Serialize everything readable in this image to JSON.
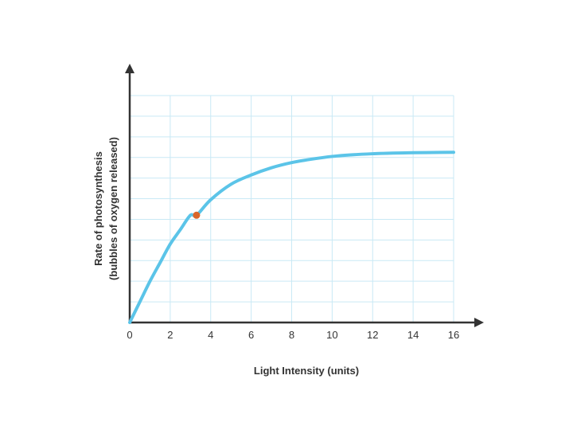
{
  "chart_data": {
    "type": "line",
    "title": "",
    "xlabel": "Light Intensity (units)",
    "ylabel_line1": "Rate of photosynthesis",
    "ylabel_line2": "(bubbles of oxygen released)",
    "xlim": [
      0,
      16
    ],
    "ylim": [
      0,
      11
    ],
    "x_ticks": [
      0,
      2,
      4,
      6,
      8,
      10,
      12,
      14,
      16
    ],
    "y_gridlines": [
      1,
      2,
      3,
      4,
      5,
      6,
      7,
      8,
      9,
      10,
      11
    ],
    "y_tick_labels_shown": false,
    "grid": true,
    "series": [
      {
        "x": [
          0,
          0.5,
          1,
          1.5,
          2,
          2.5,
          3,
          3.3,
          4,
          5,
          6,
          7,
          8,
          9,
          10,
          11,
          12,
          13,
          14,
          15,
          16
        ],
        "y": [
          0,
          1.0,
          2.0,
          2.9,
          3.8,
          4.5,
          5.2,
          5.2,
          5.95,
          6.7,
          7.15,
          7.5,
          7.75,
          7.92,
          8.05,
          8.13,
          8.18,
          8.21,
          8.23,
          8.24,
          8.25
        ]
      }
    ],
    "highlight_point": {
      "x": 3.3,
      "y": 5.2
    },
    "colors": {
      "line": "#5bc4e8",
      "grid": "#c9e9f5",
      "axis": "#333333",
      "point": "#d9662a"
    }
  }
}
